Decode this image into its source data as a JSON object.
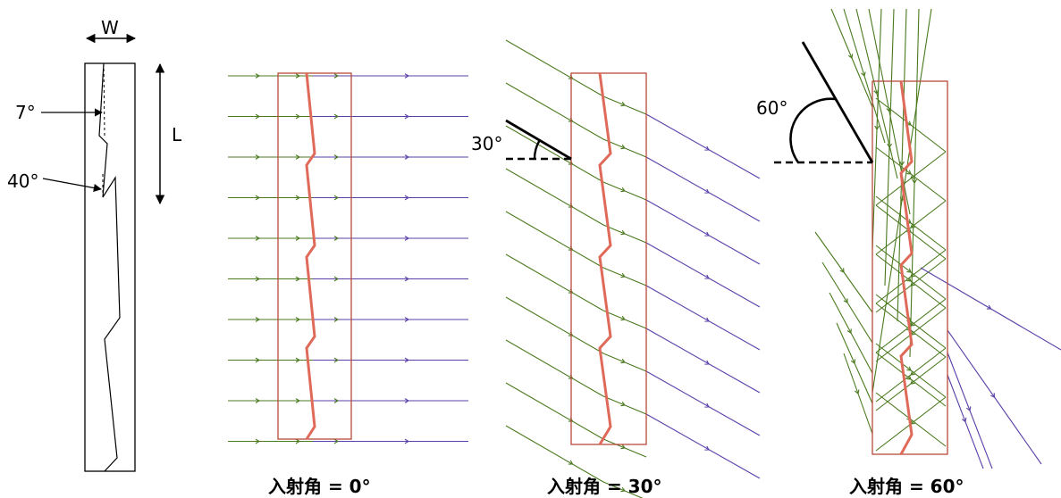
{
  "schematic": {
    "width_label": "W",
    "length_label": "L",
    "angle_small_label": "7°",
    "angle_large_label": "40°"
  },
  "panels": [
    {
      "id": "incidence-0",
      "angle_deg": 0,
      "angle_label": "",
      "caption": "入射角 = 0°"
    },
    {
      "id": "incidence-30",
      "angle_deg": 30,
      "angle_label": "30°",
      "caption": "入射角 = 30°"
    },
    {
      "id": "incidence-60",
      "angle_deg": 60,
      "angle_label": "60°",
      "caption": "入射角 = 60°"
    }
  ],
  "colors": {
    "incident_ray": "#4a7a1e",
    "transmitted_ray": "#5a3fa8",
    "block_outline": "#b84a3a",
    "facet_line": "#e06a5a",
    "schematic_line": "#000000"
  }
}
